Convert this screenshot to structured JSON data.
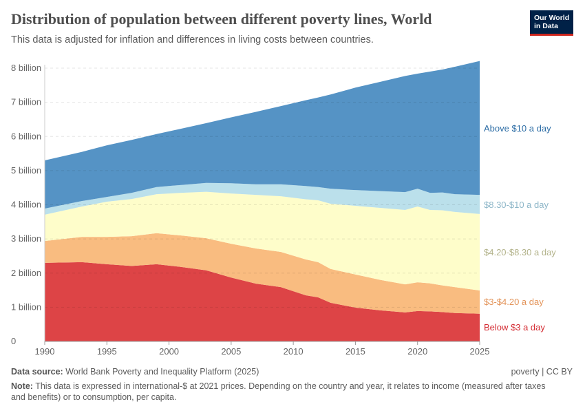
{
  "header": {
    "title": "Distribution of population between different poverty lines, World",
    "subtitle": "This data is adjusted for inflation and differences in living costs between countries.",
    "logo": "Our World in Data"
  },
  "chart_data": {
    "type": "area",
    "stacked": true,
    "x": [
      1990,
      1993,
      1995,
      1997,
      1999,
      2001,
      2003,
      2005,
      2007,
      2009,
      2011,
      2012,
      2013,
      2015,
      2017,
      2019,
      2020,
      2021,
      2022,
      2023,
      2025
    ],
    "series": [
      {
        "name": "Below $3 a day",
        "color": "#dd4446",
        "values": [
          2.3,
          2.32,
          2.26,
          2.21,
          2.26,
          2.18,
          2.08,
          1.87,
          1.69,
          1.59,
          1.35,
          1.29,
          1.13,
          0.99,
          0.91,
          0.85,
          0.89,
          0.88,
          0.86,
          0.83,
          0.81
        ]
      },
      {
        "name": "$3-$4.20 a day",
        "color": "#f9bc80",
        "values": [
          0.64,
          0.74,
          0.8,
          0.87,
          0.91,
          0.92,
          0.94,
          0.99,
          1.03,
          1.03,
          1.05,
          1.03,
          0.99,
          0.97,
          0.89,
          0.82,
          0.84,
          0.82,
          0.78,
          0.76,
          0.68
        ]
      },
      {
        "name": "$4.20-$8.30 a day",
        "color": "#fefdca",
        "values": [
          0.77,
          0.89,
          1.03,
          1.09,
          1.14,
          1.25,
          1.36,
          1.47,
          1.57,
          1.63,
          1.76,
          1.81,
          1.91,
          2.01,
          2.11,
          2.18,
          2.22,
          2.15,
          2.2,
          2.2,
          2.24
        ]
      },
      {
        "name": "$8.30-$10 a day",
        "color": "#bbe0eb",
        "values": [
          0.18,
          0.16,
          0.14,
          0.18,
          0.21,
          0.23,
          0.26,
          0.3,
          0.31,
          0.35,
          0.39,
          0.39,
          0.44,
          0.46,
          0.49,
          0.52,
          0.52,
          0.5,
          0.52,
          0.52,
          0.56
        ]
      },
      {
        "name": "Above $10 a day",
        "color": "#5593c5",
        "values": [
          1.41,
          1.44,
          1.51,
          1.55,
          1.55,
          1.65,
          1.75,
          1.93,
          2.12,
          2.29,
          2.51,
          2.62,
          2.76,
          3.0,
          3.2,
          3.4,
          3.37,
          3.55,
          3.6,
          3.73,
          3.92
        ]
      }
    ],
    "label_colors": [
      "#d42b32",
      "#e3945a",
      "#b3b38b",
      "#8db6c8",
      "#2e6ea6"
    ],
    "ylim": [
      0,
      8
    ],
    "xlim": [
      1990,
      2025
    ],
    "yticks": [
      {
        "v": 0,
        "label": "0"
      },
      {
        "v": 1,
        "label": "1 billion"
      },
      {
        "v": 2,
        "label": "2 billion"
      },
      {
        "v": 3,
        "label": "3 billion"
      },
      {
        "v": 4,
        "label": "4 billion"
      },
      {
        "v": 5,
        "label": "5 billion"
      },
      {
        "v": 6,
        "label": "6 billion"
      },
      {
        "v": 7,
        "label": "7 billion"
      },
      {
        "v": 8,
        "label": "8 billion"
      }
    ],
    "xticks": [
      1990,
      1995,
      2000,
      2005,
      2010,
      2015,
      2020,
      2025
    ],
    "grid": true
  },
  "footer": {
    "source_label": "Data source:",
    "source": "World Bank Poverty and Inequality Platform (2025)",
    "license": "poverty | CC BY",
    "note_label": "Note:",
    "note": "This data is expressed in international-$ at 2021 prices. Depending on the country and year, it relates to income (measured after taxes and benefits) or to consumption, per capita."
  }
}
